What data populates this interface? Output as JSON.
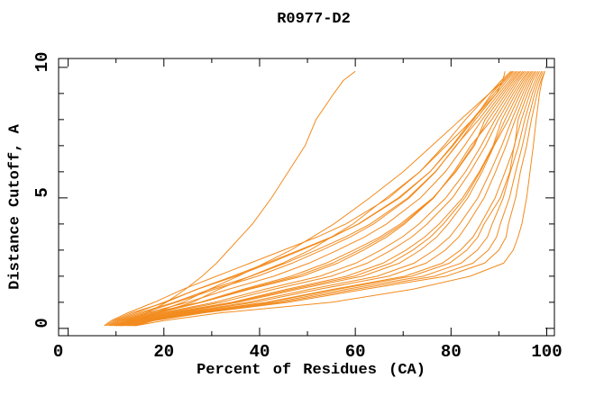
{
  "chart_data": {
    "type": "line",
    "title": "R0977-D2",
    "xlabel": "Percent of Residues (CA)",
    "ylabel": "Distance Cutoff, A",
    "xlim": [
      -2,
      101.6
    ],
    "ylim": [
      -0.28,
      10.34
    ],
    "x_major_ticks": [
      0,
      20,
      40,
      60,
      80,
      100
    ],
    "x_minor_ticks": [
      10,
      30,
      50,
      70,
      90
    ],
    "x_tick_labels": [
      "0",
      "20",
      "40",
      "60",
      "80",
      "100"
    ],
    "y_major_ticks": [
      0,
      5,
      10
    ],
    "y_minor_ticks": [
      1,
      2,
      3,
      4,
      6,
      7,
      8,
      9
    ],
    "y_tick_labels": [
      "0",
      "5",
      "10"
    ],
    "grid": false,
    "legend": "none",
    "line_color": "#f28b1e",
    "frame_color": "#000000",
    "cutoffs": [
      0.1,
      0.3,
      0.6,
      1.0,
      1.5,
      2.0,
      2.5,
      3.0,
      3.5,
      4.0,
      5.0,
      6.0,
      7.0,
      8.0,
      9.0,
      9.5,
      9.85
    ],
    "series": [
      {
        "pct": [
          10,
          13,
          16.5,
          20.5,
          24.5,
          28,
          31,
          33.5,
          36,
          38.5,
          42.5,
          46,
          49.5,
          51.8,
          55.5,
          57.5,
          60
        ]
      },
      {
        "pct": [
          11,
          14.5,
          19,
          26,
          31.5,
          38,
          44.8,
          50.5,
          55,
          59.5,
          66.5,
          73.5,
          79,
          84.5,
          89.5,
          90.8,
          91.3
        ]
      },
      {
        "pct": [
          10.5,
          14,
          18,
          24,
          29.5,
          35.5,
          41,
          46.5,
          51,
          55.5,
          63,
          70,
          76,
          82,
          88,
          91,
          92.8
        ]
      },
      {
        "pct": [
          7.5,
          9,
          12.5,
          18,
          24,
          31,
          38,
          45,
          52,
          58,
          67,
          73.5,
          78.5,
          83,
          88,
          90.5,
          92.5
        ]
      },
      {
        "pct": [
          7.8,
          9.5,
          13.3,
          20.4,
          26.9,
          34.4,
          41.5,
          48.3,
          55,
          60.7,
          69.3,
          75.6,
          80.4,
          84.7,
          88.5,
          90.9,
          92.9
        ]
      },
      {
        "pct": [
          8.2,
          9.9,
          14.1,
          20,
          27,
          35,
          42.1,
          48.7,
          55.2,
          60.6,
          69,
          75.6,
          80.2,
          84.4,
          89,
          91.3,
          93.2
        ]
      },
      {
        "pct": [
          8.5,
          10.4,
          14.9,
          22.2,
          29.7,
          38.2,
          45.4,
          51.8,
          57.9,
          63.1,
          71,
          76.7,
          81.1,
          85.1,
          89.5,
          91.7,
          93.6
        ]
      },
      {
        "pct": [
          8.8,
          10.8,
          15.7,
          22.6,
          30.6,
          39.6,
          46.8,
          53,
          58.9,
          63.8,
          71.3,
          76.8,
          81,
          85.8,
          90,
          92.2,
          93.9
        ]
      },
      {
        "pct": [
          9.1,
          11.3,
          16.5,
          25,
          33.5,
          43,
          50.3,
          56.3,
          61.9,
          66.5,
          73.6,
          78.8,
          82.8,
          86.5,
          90.5,
          92.6,
          94.3
        ]
      },
      {
        "pct": [
          9.5,
          11.7,
          17.3,
          27.6,
          36.6,
          46.6,
          53.9,
          59.7,
          65.1,
          69.4,
          76.2,
          81,
          84.9,
          87.1,
          91,
          93,
          94.6
        ]
      },
      {
        "pct": [
          9.8,
          12.2,
          18.1,
          27.8,
          37.3,
          47.8,
          55.2,
          60.8,
          65.8,
          69.9,
          76.3,
          80.9,
          84.6,
          87.8,
          91.5,
          93.4,
          95
        ]
      },
      {
        "pct": [
          10.1,
          12.6,
          18.9,
          27.9,
          37.9,
          48.9,
          56.3,
          61.7,
          66.5,
          70.3,
          76.4,
          80.6,
          84.1,
          88.5,
          92,
          93.8,
          95.3
        ]
      },
      {
        "pct": [
          10.4,
          13.1,
          19.7,
          30.6,
          41.1,
          52.6,
          60.1,
          65.3,
          69.8,
          73.3,
          78.9,
          83,
          86.3,
          89.2,
          92.5,
          94.2,
          95.7
        ]
      },
      {
        "pct": [
          10.8,
          13.5,
          20.5,
          32,
          43,
          55,
          62.5,
          67.5,
          71.8,
          75,
          80.3,
          84,
          87.2,
          89.9,
          93,
          94.7,
          96.1
        ]
      },
      {
        "pct": [
          11.1,
          14,
          21.3,
          34.2,
          45.7,
          58.2,
          65.8,
          70.6,
          74.5,
          77.5,
          82.4,
          85.9,
          88.8,
          90.6,
          93.5,
          95.1,
          96.4
        ]
      },
      {
        "pct": [
          11.4,
          14.4,
          22.1,
          34.8,
          46.8,
          59.8,
          67.4,
          72,
          75.7,
          78.4,
          82.9,
          86.1,
          88.9,
          91.3,
          94,
          95.5,
          96.8
        ]
      },
      {
        "pct": [
          11.7,
          14.9,
          22.9,
          35.5,
          48,
          61.5,
          69.2,
          73.6,
          77,
          79.4,
          83.5,
          86.5,
          89,
          92,
          94.5,
          95.9,
          97.1
        ]
      },
      {
        "pct": [
          12.1,
          15.3,
          23.7,
          37.6,
          50.6,
          64.6,
          72.3,
          76.5,
          79.7,
          81.8,
          85.6,
          88.2,
          90.6,
          92.7,
          95,
          96.3,
          97.5
        ]
      },
      {
        "pct": [
          12.4,
          15.8,
          24.5,
          39,
          52.5,
          67,
          74.8,
          78.8,
          81.6,
          83.5,
          86.9,
          89.3,
          91.5,
          93.4,
          95.5,
          96.7,
          97.8
        ]
      },
      {
        "pct": [
          12.7,
          16.2,
          25.3,
          41.4,
          55.4,
          70.4,
          78.2,
          82,
          84.6,
          86.2,
          89.2,
          91.3,
          93.3,
          94,
          96,
          97.1,
          98.2
        ]
      },
      {
        "pct": [
          13,
          16.7,
          26.1,
          41.8,
          56.3,
          71.8,
          79.7,
          83.3,
          85.6,
          86.9,
          90.3,
          92.3,
          93.2,
          94.7,
          96.5,
          97.6,
          98.5
        ]
      },
      {
        "pct": [
          13.4,
          17.1,
          26.9,
          43.2,
          58.2,
          74.2,
          82.1,
          85.5,
          87.6,
          88.6,
          90.9,
          92.4,
          94.1,
          95.4,
          97,
          98,
          98.9
        ]
      },
      {
        "pct": [
          13.7,
          17.6,
          27.7,
          44.6,
          60.1,
          76.6,
          84.6,
          87.8,
          89.5,
          90.3,
          92.2,
          93.5,
          94.9,
          96.1,
          97.5,
          98.4,
          99.2
        ]
      },
      {
        "pct": [
          14,
          18,
          28.5,
          46,
          62,
          79,
          87,
          90,
          91.5,
          92,
          93.5,
          94.5,
          95.8,
          96.8,
          98,
          98.8,
          99.6
        ]
      },
      {
        "pct": [
          14,
          20,
          32,
          55,
          72,
          84,
          91,
          93,
          94,
          94.8,
          95.8,
          96.5,
          97.2,
          97.8,
          98.5,
          99,
          99.6
        ]
      }
    ]
  }
}
